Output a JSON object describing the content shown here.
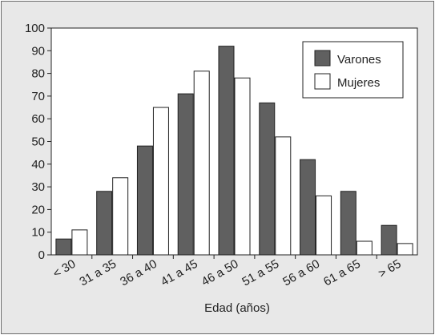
{
  "chart_data": {
    "type": "bar",
    "title": "",
    "xlabel": "Edad (años)",
    "ylabel": "",
    "ylim": [
      0,
      100
    ],
    "yticks": [
      0,
      10,
      20,
      30,
      40,
      50,
      60,
      70,
      80,
      90,
      100
    ],
    "grid": false,
    "legend_position": "top-right",
    "categories": [
      "< 30",
      "31 a 35",
      "36 a 40",
      "41 a 45",
      "46 a 50",
      "51 a 55",
      "56 a 60",
      "61 a 65",
      "> 65"
    ],
    "series": [
      {
        "name": "Varones",
        "color": "#606060",
        "values": [
          7,
          28,
          48,
          71,
          92,
          67,
          42,
          28,
          13
        ]
      },
      {
        "name": "Mujeres",
        "color": "#ffffff",
        "values": [
          11,
          34,
          65,
          81,
          78,
          52,
          26,
          6,
          5
        ]
      }
    ]
  }
}
